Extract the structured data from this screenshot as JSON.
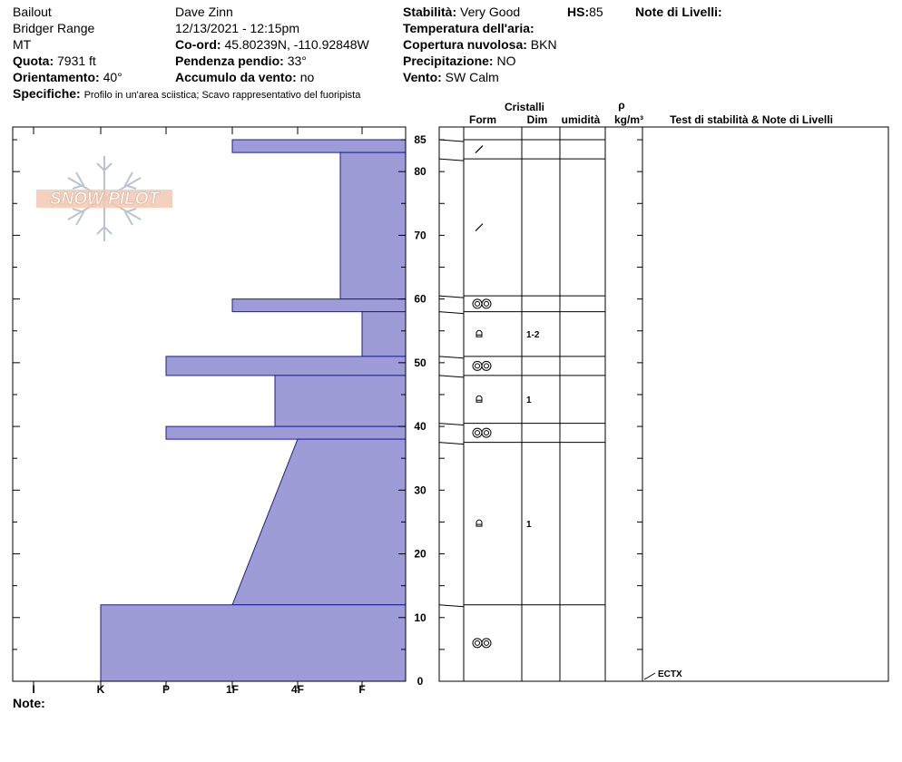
{
  "header": {
    "location": "Bailout",
    "range": "Bridger Range",
    "state": "MT",
    "elevation_label": "Quota:",
    "elevation": "7931 ft",
    "aspect_label": "Orientamento:",
    "aspect": "40°",
    "specifics_label": "Specifiche:",
    "specifics": "Profilo in un'area sciistica; Scavo rappresentativo del fuoripista",
    "observer": "Dave Zinn",
    "datetime": "12/13/2021 - 12:15pm",
    "coord_label": "Co-ord:",
    "coord": "45.80239N, -110.92848W",
    "slope_label": "Pendenza pendio:",
    "slope": "33°",
    "windload_label": "Accumulo da vento:",
    "windload": "no",
    "stability_label": "Stabilità:",
    "stability": "Very Good",
    "hs_label": "HS:",
    "hs": "85",
    "airtemp_label": "Temperatura dell'aria:",
    "cloud_label": "Copertura nuvolosa:",
    "cloud": "BKN",
    "precip_label": "Precipitazione:",
    "precip": "NO",
    "wind_label": "Vento:",
    "wind": "SW Calm",
    "layer_notes_label": "Note di Livelli:"
  },
  "columns": {
    "crystals": "Cristalli",
    "form": "Form",
    "dim": "Dim",
    "moisture": "umidità",
    "rho": "ρ",
    "density_unit": "kg/m³",
    "tests": "Test di stabilità & Note di Livelli"
  },
  "note_label": "Note:",
  "logo_text": "SNOW PILOT",
  "stability_tests": [
    {
      "height": 0,
      "label": "ECTX"
    }
  ],
  "chart_data": {
    "type": "area",
    "title": "",
    "y_axis": {
      "range": [
        0,
        87
      ],
      "ticks": [
        0,
        10,
        20,
        30,
        40,
        50,
        60,
        70,
        80,
        85
      ]
    },
    "x_axis": {
      "categories": [
        "I",
        "K",
        "P",
        "1F",
        "4F",
        "F"
      ],
      "note": "hardness index, 0 = F at right edge"
    },
    "fill_color": "#9d9cd6",
    "edge_color": "#1c1c9c",
    "hardness_profile": [
      {
        "top": 85,
        "bottom": 83,
        "hardness": "1F"
      },
      {
        "top": 83,
        "bottom": 60,
        "hardness": "F+"
      },
      {
        "top": 60,
        "bottom": 58,
        "hardness": "1F"
      },
      {
        "top": 58,
        "bottom": 51,
        "hardness": "F"
      },
      {
        "top": 51,
        "bottom": 48,
        "hardness": "P"
      },
      {
        "top": 48,
        "bottom": 40,
        "hardness": "4F+"
      },
      {
        "top": 40,
        "bottom": 38,
        "hardness": "P"
      },
      {
        "top": 38,
        "bottom": 12,
        "hardness_top": "4F",
        "hardness_bottom": "1F"
      },
      {
        "top": 12,
        "bottom": 0,
        "hardness": "K"
      }
    ],
    "layers": [
      {
        "top": 85,
        "bottom": 82,
        "form": "decomposing",
        "dim": ""
      },
      {
        "top": 82,
        "bottom": 60.5,
        "form": "decomposing",
        "dim": ""
      },
      {
        "top": 60.5,
        "bottom": 58,
        "form": "melt-freeze",
        "dim": ""
      },
      {
        "top": 58,
        "bottom": 51,
        "form": "faceted",
        "dim": "1-2"
      },
      {
        "top": 51,
        "bottom": 48,
        "form": "melt-freeze",
        "dim": ""
      },
      {
        "top": 48,
        "bottom": 40.5,
        "form": "faceted",
        "dim": "1"
      },
      {
        "top": 40.5,
        "bottom": 37.5,
        "form": "melt-freeze",
        "dim": ""
      },
      {
        "top": 37.5,
        "bottom": 12,
        "form": "faceted",
        "dim": "1"
      },
      {
        "top": 12,
        "bottom": 0,
        "form": "melt-freeze",
        "dim": ""
      }
    ]
  }
}
